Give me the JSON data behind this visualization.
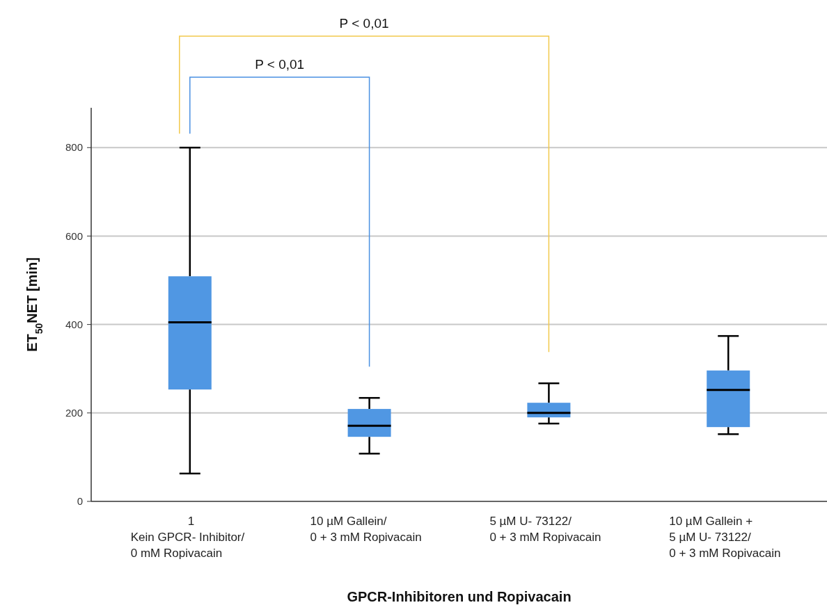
{
  "chart_data": {
    "type": "box",
    "xlabel": "GPCR-Inhibitoren und Ropivacain",
    "ylabel": "ET$_{50}$NET [min]",
    "categories": [
      "1\nKein GPCR- Inhibitor/\n0 mM Ropivacain",
      "10 µM Gallein/\n0 + 3 mM Ropivacain",
      "5 µM U- 73122/\n0 + 3 mM Ropivacain",
      "10 µM Gallein +\n5 µM U- 73122/\n0 + 3 mM Ropivacain"
    ],
    "color": "#5097e3",
    "boxes": [
      {
        "low": 63,
        "q1": 253,
        "median": 405,
        "q3": 509,
        "high": 800
      },
      {
        "low": 108,
        "q1": 146,
        "median": 171,
        "q3": 209,
        "high": 234
      },
      {
        "low": 176,
        "q1": 190,
        "median": 200,
        "q3": 223,
        "high": 267
      },
      {
        "low": 152,
        "q1": 168,
        "median": 252,
        "q3": 296,
        "high": 374
      }
    ],
    "ylim": [
      0,
      890
    ],
    "yticks": [
      0,
      200,
      400,
      600,
      800
    ],
    "grid": "y",
    "annotations": [
      "P < 0,01",
      "P < 0,01"
    ]
  }
}
